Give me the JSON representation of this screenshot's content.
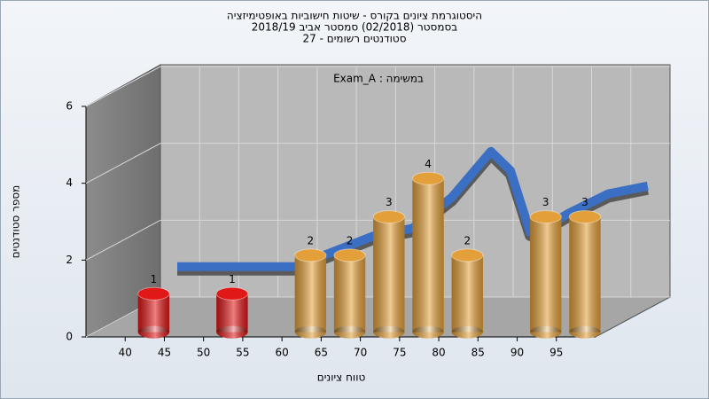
{
  "chart_data": {
    "type": "histogram",
    "title": "היסטוגרמת ציונים בקורס - שיטות חישוביות באופטימיזציה",
    "subtitle": "בסמסטר  (02/2018)  סמסטר אביב 2018/19",
    "subtitle2": "סטודנטים רשומים - 27",
    "annotation": "Exam_A : במשימה",
    "xlabel": "טווח ציונים",
    "ylabel": "מספר סטודנטים",
    "bins": [
      40,
      45,
      50,
      55,
      60,
      65,
      70,
      75,
      80,
      85,
      90,
      95,
      100
    ],
    "values": [
      1,
      0,
      1,
      0,
      2,
      2,
      3,
      4,
      2,
      0,
      3,
      3
    ],
    "colors": [
      "#e01818",
      "#e01818",
      "#e01818",
      "#e01818",
      "#e3a03a",
      "#e3a03a",
      "#e3a03a",
      "#e3a03a",
      "#e3a03a",
      "#e3a03a",
      "#e3a03a",
      "#e3a03a"
    ],
    "fit": {
      "x": [
        40,
        45,
        50,
        55,
        60,
        65,
        70,
        75,
        80,
        82.5,
        85,
        87.5,
        90,
        95,
        100
      ],
      "values": [
        1.1,
        1.1,
        1.1,
        1.1,
        1.5,
        1.9,
        2.1,
        2.9,
        4.1,
        3.6,
        2.0,
        2.2,
        2.5,
        3.0,
        3.2
      ],
      "color": "#3a6fc4"
    },
    "xlim": [
      35,
      100
    ],
    "xticks": [
      40,
      45,
      50,
      55,
      60,
      65,
      70,
      75,
      80,
      85,
      90,
      95
    ],
    "ylim": [
      0,
      6
    ],
    "yticks": [
      0,
      2,
      4,
      6
    ],
    "grid": true
  }
}
